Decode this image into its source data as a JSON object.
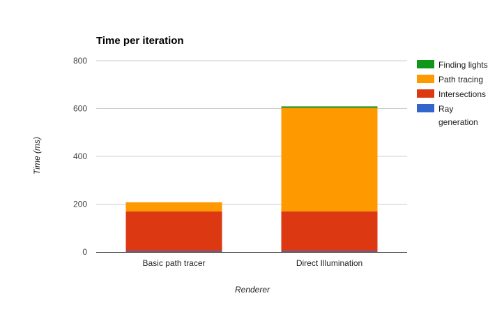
{
  "chart_data": {
    "type": "bar",
    "stacked": true,
    "title": "Time per iteration",
    "xlabel": "Renderer",
    "ylabel": "Time (ms)",
    "ylim": [
      0,
      800
    ],
    "yticks": [
      0,
      200,
      400,
      600,
      800
    ],
    "grid": true,
    "legend_position": "right",
    "categories": [
      "Basic path tracer",
      "Direct Illumination"
    ],
    "series": [
      {
        "name": "Ray generation",
        "color": "#3366cc",
        "values": [
          3,
          3
        ]
      },
      {
        "name": "Intersections",
        "color": "#dc3912",
        "values": [
          167,
          167
        ]
      },
      {
        "name": "Path tracing",
        "color": "#ff9900",
        "values": [
          38,
          433
        ]
      },
      {
        "name": "Finding lights",
        "color": "#109618",
        "values": [
          0,
          6
        ]
      }
    ],
    "legend": [
      {
        "label_lines": [
          "Finding lights"
        ],
        "color": "#109618"
      },
      {
        "label_lines": [
          "Path tracing"
        ],
        "color": "#ff9900"
      },
      {
        "label_lines": [
          "Intersections"
        ],
        "color": "#dc3912"
      },
      {
        "label_lines": [
          "Ray",
          "generation"
        ],
        "color": "#3366cc"
      }
    ]
  }
}
